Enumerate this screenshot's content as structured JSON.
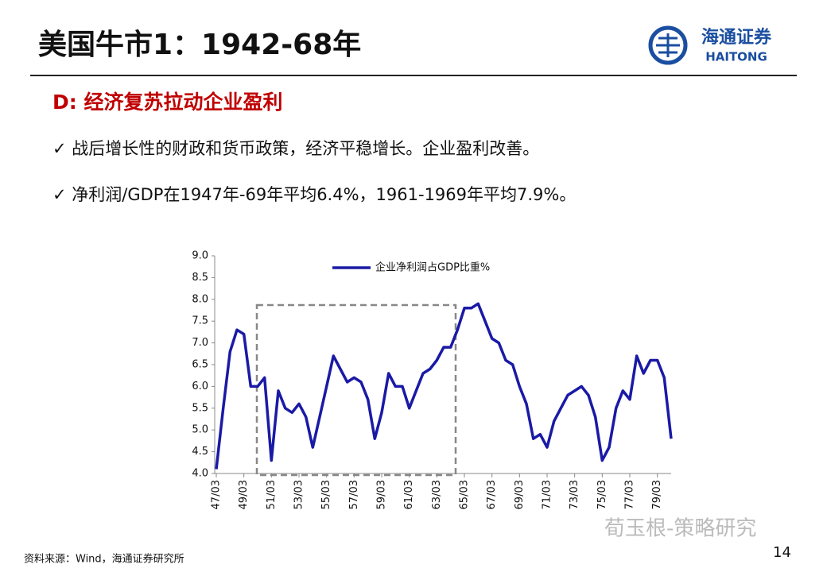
{
  "slide": {
    "title": "美国牛市1：1942-68年",
    "logo_cn": "海通证券",
    "logo_en": "HAITONG",
    "subtitle": "D: 经济复苏拉动企业盈利",
    "bullets": [
      "✓ 战后增长性的财政和货币政策，经济平稳增长。企业盈利改善。",
      "✓ 净利润/GDP在1947年-69年平均6.4%，1961-1969年平均7.9%。"
    ],
    "source": "资料来源：Wind，海通证券研究所",
    "watermark": "荀玉根-策略研究",
    "page": "14"
  },
  "chart_data": {
    "type": "line",
    "categories": [
      "47/03",
      null,
      null,
      null,
      "49/03",
      null,
      null,
      null,
      "51/03",
      null,
      null,
      null,
      "53/03",
      null,
      null,
      null,
      "55/03",
      null,
      null,
      null,
      "57/03",
      null,
      null,
      null,
      "59/03",
      null,
      null,
      null,
      "61/03",
      null,
      null,
      null,
      "63/03",
      null,
      null,
      null,
      "65/03",
      null,
      null,
      null,
      "67/03",
      null,
      null,
      null,
      "69/03",
      null,
      null,
      null,
      "71/03",
      null,
      null,
      null,
      "73/03",
      null,
      null,
      null,
      "75/03",
      null,
      null,
      null,
      "77/03",
      null,
      null,
      null,
      "79/03",
      null,
      null
    ],
    "series": [
      {
        "name": "企业净利润占GDP比重%",
        "color": "#1a1aa6",
        "values": [
          4.1,
          5.5,
          6.8,
          7.3,
          7.2,
          6.0,
          6.0,
          6.2,
          4.3,
          5.9,
          5.5,
          5.4,
          5.6,
          5.3,
          4.6,
          5.3,
          6.0,
          6.7,
          6.4,
          6.1,
          6.2,
          6.1,
          5.7,
          4.8,
          5.4,
          6.3,
          6.0,
          6.0,
          5.5,
          5.9,
          6.3,
          6.4,
          6.6,
          6.9,
          6.9,
          7.3,
          7.8,
          7.8,
          7.9,
          7.5,
          7.1,
          7.0,
          6.6,
          6.5,
          6.0,
          5.6,
          4.8,
          4.9,
          4.6,
          5.2,
          5.5,
          5.8,
          5.9,
          6.0,
          5.8,
          5.3,
          4.3,
          4.6,
          5.5,
          5.9,
          5.7,
          6.7,
          6.3,
          6.6,
          6.6,
          6.2,
          4.8
        ]
      }
    ],
    "ylim": [
      4,
      9
    ],
    "yticks": [
      {
        "value": 4,
        "label": "4.0"
      },
      4.5,
      {
        "value": 5,
        "label": "5.0"
      },
      5.5,
      {
        "value": 6,
        "label": "6.0"
      },
      6.5,
      {
        "value": 7,
        "label": "7.0"
      },
      7.5,
      {
        "value": 8,
        "label": "8.0"
      },
      8.5,
      {
        "value": 9,
        "label": "9.0"
      }
    ],
    "legend": "top",
    "grid": false
  }
}
